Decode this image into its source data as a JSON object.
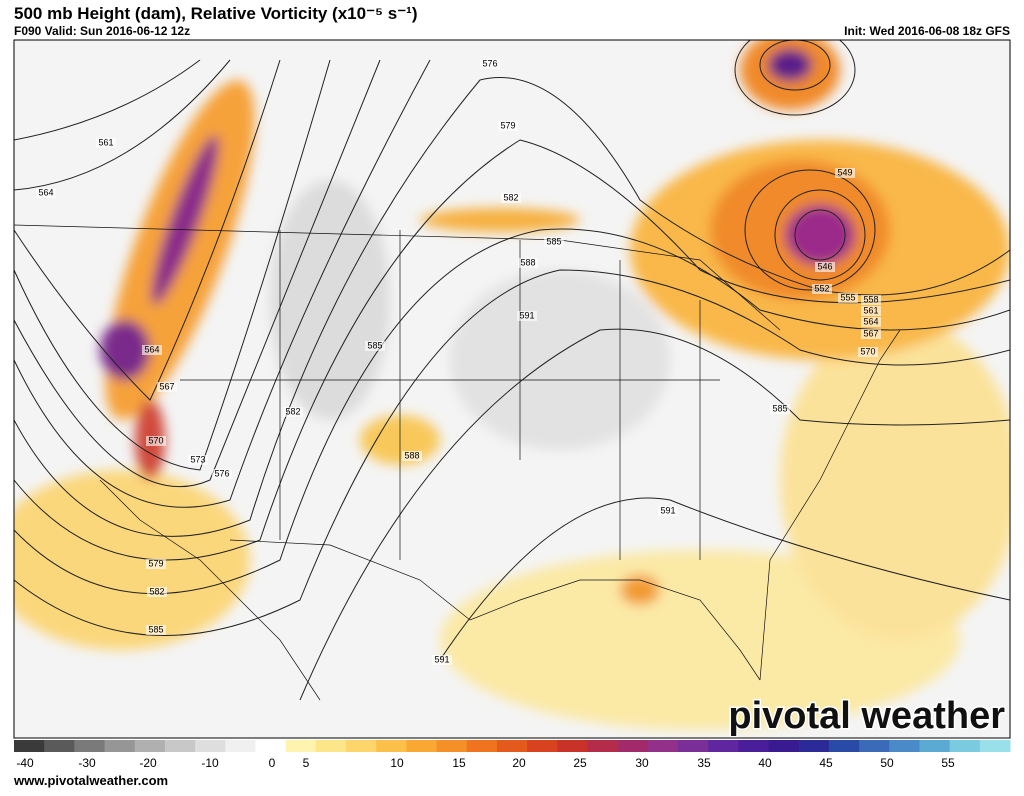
{
  "header": {
    "title": "500 mb Height (dam), Relative Vorticity (x10⁻⁵ s⁻¹)",
    "valid": "F090 Valid: Sun 2016-06-12 12z",
    "init": "Init: Wed 2016-06-08 18z GFS"
  },
  "contour_labels": [
    "561",
    "564",
    "564",
    "567",
    "570",
    "573",
    "576",
    "579",
    "582",
    "585",
    "576",
    "579",
    "582",
    "585",
    "588",
    "591",
    "585",
    "582",
    "588",
    "591",
    "591",
    "549",
    "546",
    "552",
    "555",
    "558",
    "561",
    "564",
    "567",
    "570",
    "585"
  ],
  "colorbar": {
    "ticks": [
      -40,
      -30,
      -20,
      -10,
      0,
      5,
      10,
      15,
      20,
      25,
      30,
      35,
      40,
      45,
      50,
      55
    ]
  },
  "watermark": "pivotal weather",
  "footer": "www.pivotalweather.com"
}
